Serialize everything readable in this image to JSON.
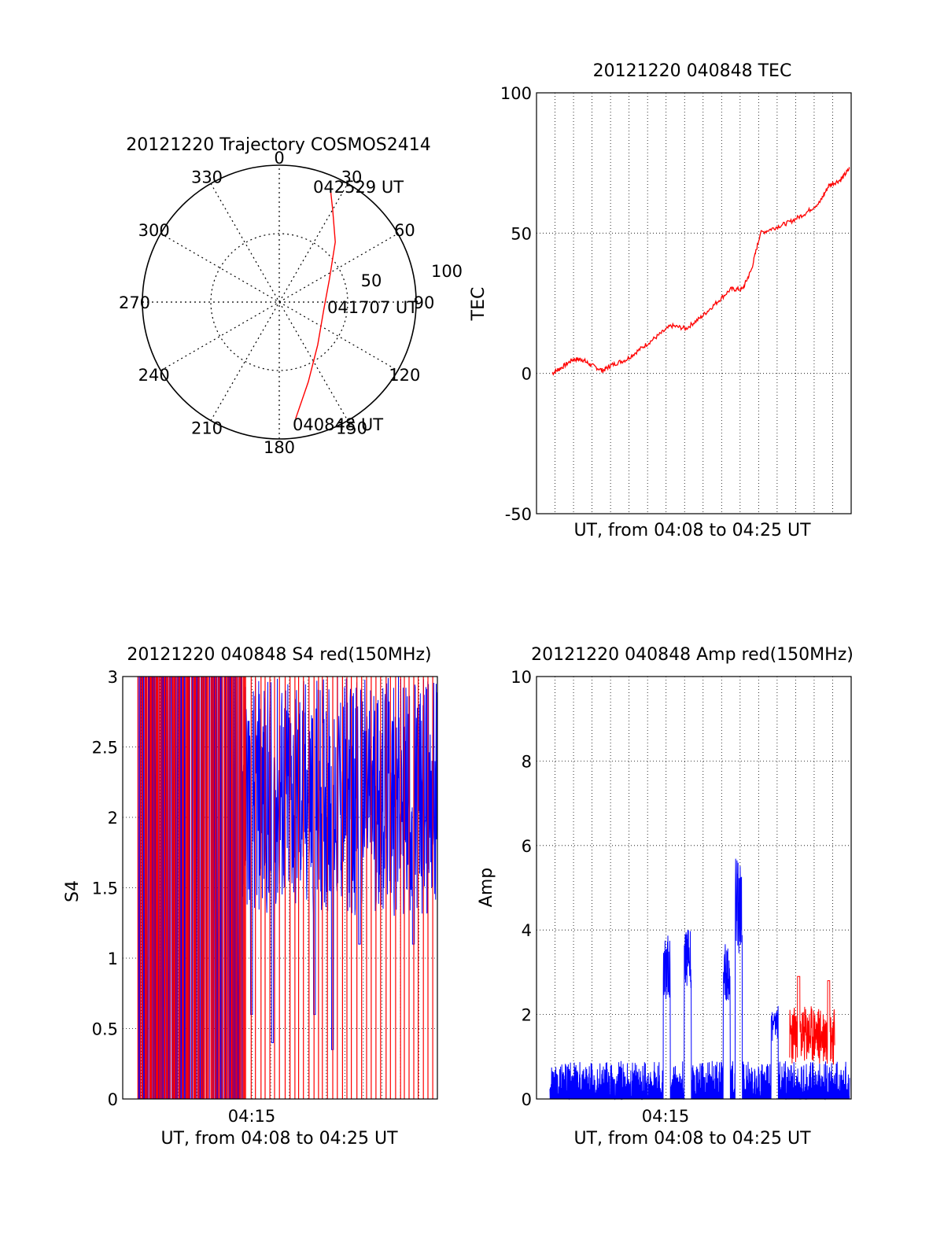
{
  "colors": {
    "red": "#ff0000",
    "blue": "#0000ff",
    "axis": "#000000",
    "grid": "#000000"
  },
  "charts": {
    "polar": {
      "title": "20121220 Trajectory COSMOS2414",
      "type": "polar",
      "angle_labels": [
        "0",
        "30",
        "60",
        "90",
        "120",
        "150",
        "180",
        "210",
        "240",
        "270",
        "300",
        "330"
      ],
      "radius_labels": [
        "50",
        "100"
      ],
      "annotations": {
        "start": "040848 UT",
        "mid": "041707 UT",
        "end": "042529 UT"
      },
      "trajectory": [
        {
          "azimuth": 172,
          "radius": 86
        },
        {
          "azimuth": 160,
          "radius": 62
        },
        {
          "azimuth": 138,
          "radius": 42
        },
        {
          "azimuth": 100,
          "radius": 33
        },
        {
          "azimuth": 66,
          "radius": 40
        },
        {
          "azimuth": 43,
          "radius": 60
        },
        {
          "azimuth": 30,
          "radius": 78
        },
        {
          "azimuth": 25,
          "radius": 89
        }
      ]
    },
    "tec": {
      "title": "20121220 040848 TEC",
      "type": "line",
      "xlabel": "UT, from 04:08 to 04:25 UT",
      "ylabel": "TEC",
      "ylim": [
        -50,
        100
      ],
      "yticks": [
        "-50",
        "0",
        "50",
        "100"
      ],
      "grid": true,
      "series": [
        {
          "color": "#ff0000",
          "points": [
            [
              0,
              0
            ],
            [
              0.03,
              2
            ],
            [
              0.07,
              5
            ],
            [
              0.1,
              5
            ],
            [
              0.13,
              3
            ],
            [
              0.17,
              1
            ],
            [
              0.2,
              3
            ],
            [
              0.25,
              5
            ],
            [
              0.3,
              9
            ],
            [
              0.35,
              13
            ],
            [
              0.4,
              17
            ],
            [
              0.45,
              16
            ],
            [
              0.5,
              20
            ],
            [
              0.55,
              25
            ],
            [
              0.6,
              30
            ],
            [
              0.64,
              30
            ],
            [
              0.67,
              37
            ],
            [
              0.7,
              50
            ],
            [
              0.75,
              52
            ],
            [
              0.8,
              54
            ],
            [
              0.85,
              57
            ],
            [
              0.9,
              61
            ],
            [
              0.93,
              67
            ],
            [
              0.97,
              69
            ],
            [
              1,
              73
            ]
          ]
        }
      ]
    },
    "s4": {
      "title": "20121220 040848 S4 red(150MHz)",
      "type": "line",
      "xlabel": "UT, from 04:08 to 04:25 UT",
      "ylabel": "S4",
      "ylim": [
        0,
        3
      ],
      "yticks": [
        "0",
        "0.5",
        "1",
        "1.5",
        "2",
        "2.5",
        "3"
      ],
      "xtick": "04:15",
      "grid": true,
      "series": [
        {
          "color": "#ff0000",
          "description_points": [
            [
              0,
              0
            ],
            [
              0.35,
              3
            ],
            [
              1,
              3
            ]
          ]
        },
        {
          "color": "#0000ff",
          "dips": [
            [
              0.38,
              0.6
            ],
            [
              0.45,
              0.4
            ],
            [
              0.59,
              0.6
            ],
            [
              0.65,
              0.35
            ],
            [
              0.74,
              1.1
            ],
            [
              0.92,
              1.1
            ]
          ]
        }
      ]
    },
    "amp": {
      "title": "20121220 040848 Amp red(150MHz)",
      "type": "line",
      "xlabel": "UT, from 04:08 to 04:25 UT",
      "ylabel": "Amp",
      "ylim": [
        0,
        10
      ],
      "yticks": [
        "0",
        "2",
        "4",
        "6",
        "8",
        "10"
      ],
      "xtick": "04:15",
      "grid": true,
      "spikes": [
        {
          "x": 0.39,
          "value": 3.9,
          "color": "#0000ff"
        },
        {
          "x": 0.46,
          "value": 4.2,
          "color": "#0000ff"
        },
        {
          "x": 0.59,
          "value": 3.7,
          "color": "#0000ff"
        },
        {
          "x": 0.63,
          "value": 5.7,
          "color": "#0000ff"
        },
        {
          "x": 0.75,
          "value": 2.2,
          "color": "#0000ff"
        },
        {
          "x": 0.83,
          "value": 2.9,
          "color": "#ff0000"
        },
        {
          "x": 0.93,
          "value": 2.8,
          "color": "#ff0000"
        }
      ]
    }
  }
}
